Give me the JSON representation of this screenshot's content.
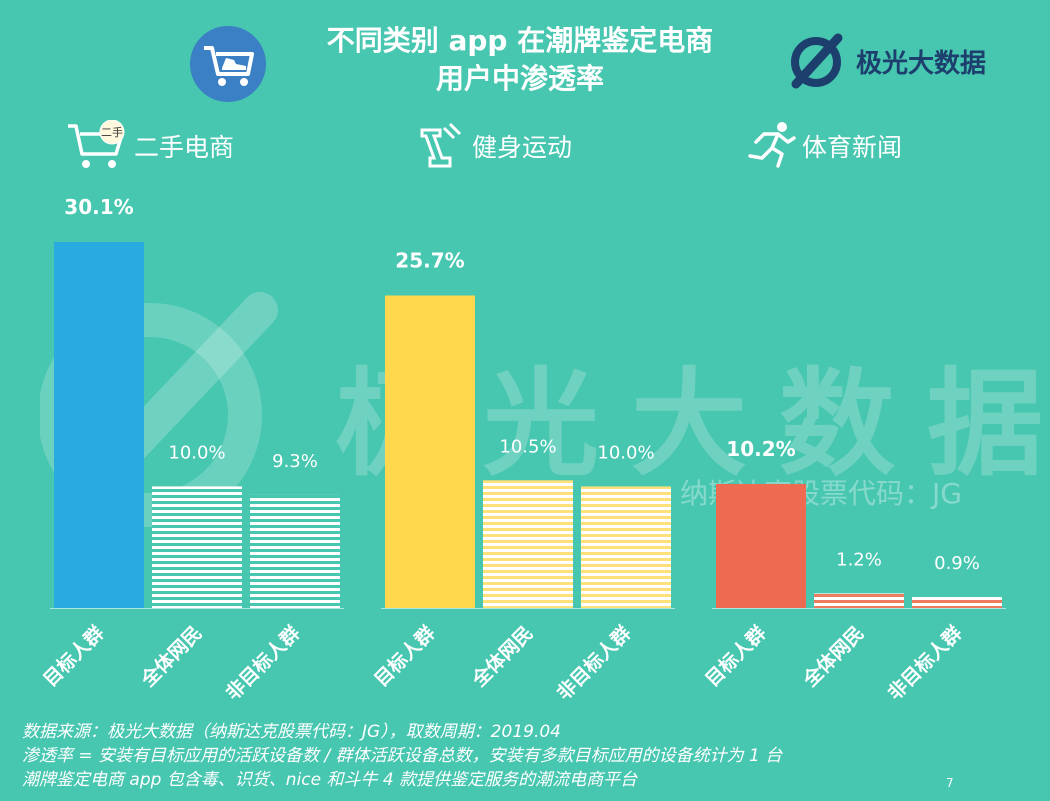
{
  "title": {
    "line1": "不同类别 app 在潮牌鉴定电商",
    "line2": "用户中渗透率"
  },
  "brand": {
    "name": "极光大数据"
  },
  "watermark": {
    "main": "极光大数据",
    "sub": "纳斯达克股票代码：JG"
  },
  "categories_header": [
    {
      "label": "二手电商",
      "icon": "used-goods-cart-icon",
      "badge": "二手"
    },
    {
      "label": "健身运动",
      "icon": "fitness-icon"
    },
    {
      "label": "体育新闻",
      "icon": "runner-icon"
    }
  ],
  "chart_data": {
    "type": "bar",
    "unit": "%",
    "groups": [
      {
        "name": "二手电商",
        "color": "#29abe2",
        "categories": [
          "目标人群",
          "全体网民",
          "非目标人群"
        ],
        "values": [
          30.1,
          10.0,
          9.3
        ],
        "labels": [
          "30.1%",
          "10.0%",
          "9.3%"
        ]
      },
      {
        "name": "健身运动",
        "color": "#ffd84d",
        "categories": [
          "目标人群",
          "全体网民",
          "非目标人群"
        ],
        "values": [
          25.7,
          10.5,
          10.0
        ],
        "labels": [
          "25.7%",
          "10.5%",
          "10.0%"
        ]
      },
      {
        "name": "体育新闻",
        "color": "#ee6a50",
        "categories": [
          "目标人群",
          "全体网民",
          "非目标人群"
        ],
        "values": [
          10.2,
          1.2,
          0.9
        ],
        "labels": [
          "10.2%",
          "1.2%",
          "0.9%"
        ]
      }
    ],
    "ylim": [
      0,
      30.1
    ]
  },
  "footer": {
    "line1": "数据来源：极光大数据（纳斯达克股票代码：JG），取数周期：2019.04",
    "line2": "渗透率 = 安装有目标应用的活跃设备数 / 群体活跃设备总数，安装有多款目标应用的设备统计为 1 台",
    "line3": "潮牌鉴定电商 app 包含毒、识货、nice 和斗牛 4 款提供鉴定服务的潮流电商平台"
  },
  "page_number": "7"
}
